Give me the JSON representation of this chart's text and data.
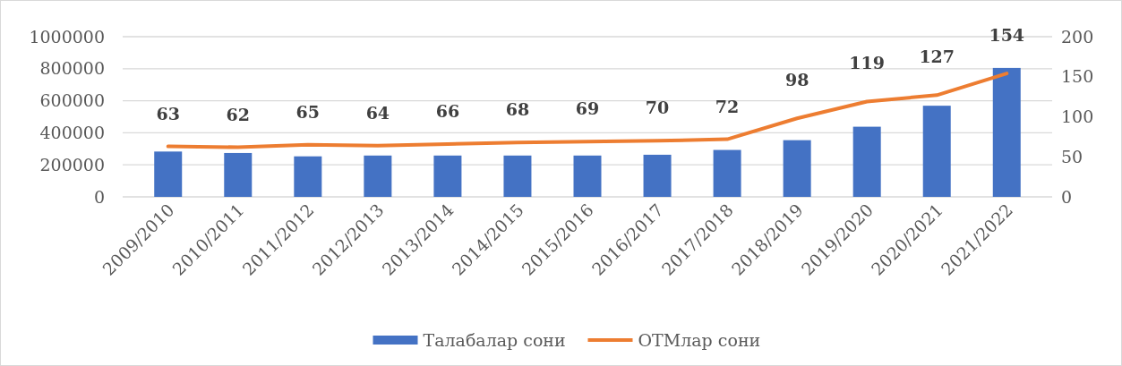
{
  "chart_data": {
    "type": "bar",
    "categories": [
      "2009/2010",
      "2010/2011",
      "2011/2012",
      "2012/2013",
      "2013/2014",
      "2014/2015",
      "2015/2016",
      "2016/2017",
      "2017/2018",
      "2018/2019",
      "2019/2020",
      "2020/2021",
      "2021/2022"
    ],
    "series": [
      {
        "name": "Талабалар сони",
        "color": "#4472c4",
        "values": [
          283000,
          274000,
          253000,
          258000,
          258000,
          258000,
          258000,
          263000,
          293000,
          354000,
          438000,
          569000,
          805000
        ]
      },
      {
        "name": "ОТМлар сони",
        "type": "line",
        "axis": "y2",
        "color": "#ed7d31",
        "values": [
          63,
          62,
          65,
          64,
          66,
          68,
          69,
          70,
          72,
          98,
          119,
          127,
          154
        ],
        "data_labels": true
      }
    ],
    "ylim": [
      0,
      1000000
    ],
    "yticks": [
      0,
      200000,
      400000,
      600000,
      800000,
      1000000
    ],
    "y2lim": [
      0,
      200
    ],
    "y2ticks": [
      0,
      50,
      100,
      150,
      200
    ],
    "grid": "y",
    "legend": "bottom"
  }
}
